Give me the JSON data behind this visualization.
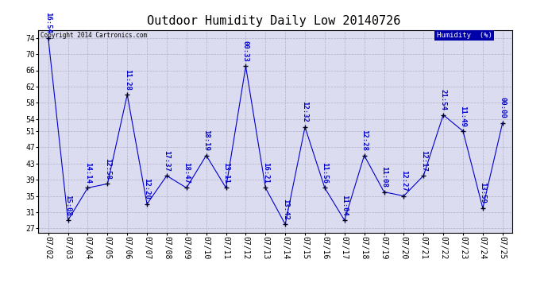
{
  "title": "Outdoor Humidity Daily Low 20140726",
  "copyright": "Copyright 2014 Cartronics.com",
  "legend_label": "Humidity  (%)",
  "x_labels": [
    "07/02",
    "07/03",
    "07/04",
    "07/05",
    "07/06",
    "07/07",
    "07/08",
    "07/09",
    "07/10",
    "07/11",
    "07/12",
    "07/13",
    "07/14",
    "07/15",
    "07/16",
    "07/17",
    "07/18",
    "07/19",
    "07/20",
    "07/21",
    "07/22",
    "07/23",
    "07/24",
    "07/25"
  ],
  "y_values": [
    74,
    29,
    37,
    38,
    60,
    33,
    40,
    37,
    45,
    37,
    67,
    37,
    28,
    52,
    37,
    29,
    45,
    36,
    35,
    40,
    55,
    51,
    32,
    53
  ],
  "time_labels": [
    "16:54",
    "15:08",
    "14:14",
    "12:58",
    "11:28",
    "12:20",
    "17:37",
    "18:47",
    "18:19",
    "13:11",
    "00:33",
    "16:21",
    "13:42",
    "12:32",
    "11:56",
    "11:04",
    "12:28",
    "11:08",
    "12:27",
    "12:17",
    "21:54",
    "11:49",
    "13:59",
    "00:00"
  ],
  "y_ticks": [
    27,
    31,
    35,
    39,
    43,
    47,
    51,
    54,
    58,
    62,
    66,
    70,
    74
  ],
  "ylim": [
    26,
    76
  ],
  "line_color": "#0000cc",
  "marker_color": "#000033",
  "bg_color": "#ffffff",
  "plot_bg_color": "#dcdcf0",
  "grid_color": "#b0b0c8",
  "title_color": "#000000",
  "legend_bg": "#0000aa",
  "legend_text_color": "#ffffff",
  "copyright_color": "#000000",
  "label_color": "#0000cc",
  "title_fontsize": 11,
  "tick_fontsize": 7,
  "label_fontsize": 6.5
}
